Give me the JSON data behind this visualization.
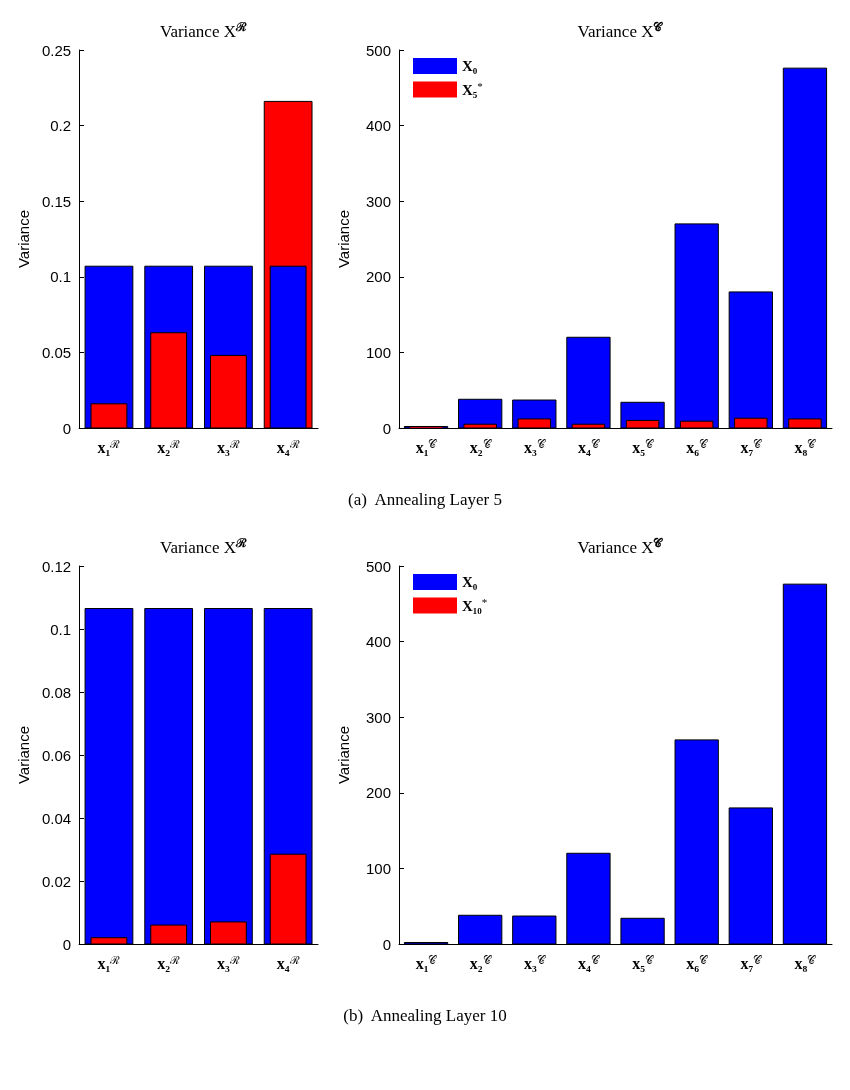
{
  "chart_data": [
    {
      "type": "bar",
      "title": "Variance X$^{ℛ}$",
      "ylabel": "Variance",
      "categories": [
        "x₁$^{ℛ}$",
        "x₂$^{ℛ}$",
        "x₃$^{ℛ}$",
        "x₄$^{ℛ}$"
      ],
      "series": [
        {
          "color": "#0000ff",
          "values": [
            0.107,
            0.107,
            0.107,
            0.107
          ]
        },
        {
          "color": "#ff0000",
          "values": [
            0.016,
            0.063,
            0.048,
            0.216
          ]
        }
      ],
      "ylim": [
        0,
        0.25
      ],
      "yticks": [
        0,
        0.05,
        0.1,
        0.15,
        0.2,
        0.25
      ],
      "grid": false,
      "legend": false,
      "annotations": [
        "(a)  Annealing Layer 5"
      ]
    },
    {
      "type": "bar",
      "title": "Variance X$^{𝒞}$",
      "ylabel": "Variance",
      "categories": [
        "x₁$^{𝒞}$",
        "x₂$^{𝒞}$",
        "x₃$^{𝒞}$",
        "x₄$^{𝒞}$",
        "x₅$^{𝒞}$",
        "x₆$^{𝒞}$",
        "x₇$^{𝒞}$",
        "x₈$^{𝒞}$"
      ],
      "series": [
        {
          "name": "X₀",
          "color": "#0000ff",
          "values": [
            2,
            38,
            37,
            120,
            34,
            270,
            180,
            476
          ]
        },
        {
          "name": "X₅$^{*}$",
          "color": "#ff0000",
          "values": [
            1,
            5,
            12,
            5,
            10,
            9,
            13,
            12
          ]
        }
      ],
      "ylim": [
        0,
        500
      ],
      "yticks": [
        0,
        100,
        200,
        300,
        400,
        500
      ],
      "grid": false,
      "legend": "top left"
    },
    {
      "type": "bar",
      "title": "Variance X$^{ℛ}$",
      "ylabel": "Variance",
      "categories": [
        "x₁$^{ℛ}$",
        "x₂$^{ℛ}$",
        "x₃$^{ℛ}$",
        "x₄$^{ℛ}$"
      ],
      "series": [
        {
          "color": "#0000ff",
          "values": [
            0.1065,
            0.1065,
            0.1065,
            0.1065
          ]
        },
        {
          "color": "#ff0000",
          "values": [
            0.002,
            0.006,
            0.007,
            0.0285
          ]
        }
      ],
      "ylim": [
        0,
        0.12
      ],
      "yticks": [
        0,
        0.02,
        0.04,
        0.06,
        0.08,
        0.1,
        0.12
      ],
      "grid": false,
      "legend": false,
      "annotations": [
        "(b)  Annealing Layer 10"
      ]
    },
    {
      "type": "bar",
      "title": "Variance X$^{𝒞}$",
      "ylabel": "Variance",
      "categories": [
        "x₁$^{𝒞}$",
        "x₂$^{𝒞}$",
        "x₃$^{𝒞}$",
        "x₄$^{𝒞}$",
        "x₅$^{𝒞}$",
        "x₆$^{𝒞}$",
        "x₇$^{𝒞}$",
        "x₈$^{𝒞}$"
      ],
      "series": [
        {
          "name": "X₀",
          "color": "#0000ff",
          "values": [
            2,
            38,
            37,
            120,
            34,
            270,
            180,
            476
          ]
        },
        {
          "name": "X₁₀$^{*}$",
          "color": "#ff0000",
          "values": [
            0,
            0,
            0,
            0,
            0,
            0,
            0,
            0
          ]
        }
      ],
      "ylim": [
        0,
        500
      ],
      "yticks": [
        0,
        100,
        200,
        300,
        400,
        500
      ],
      "grid": false,
      "legend": "top left"
    }
  ]
}
